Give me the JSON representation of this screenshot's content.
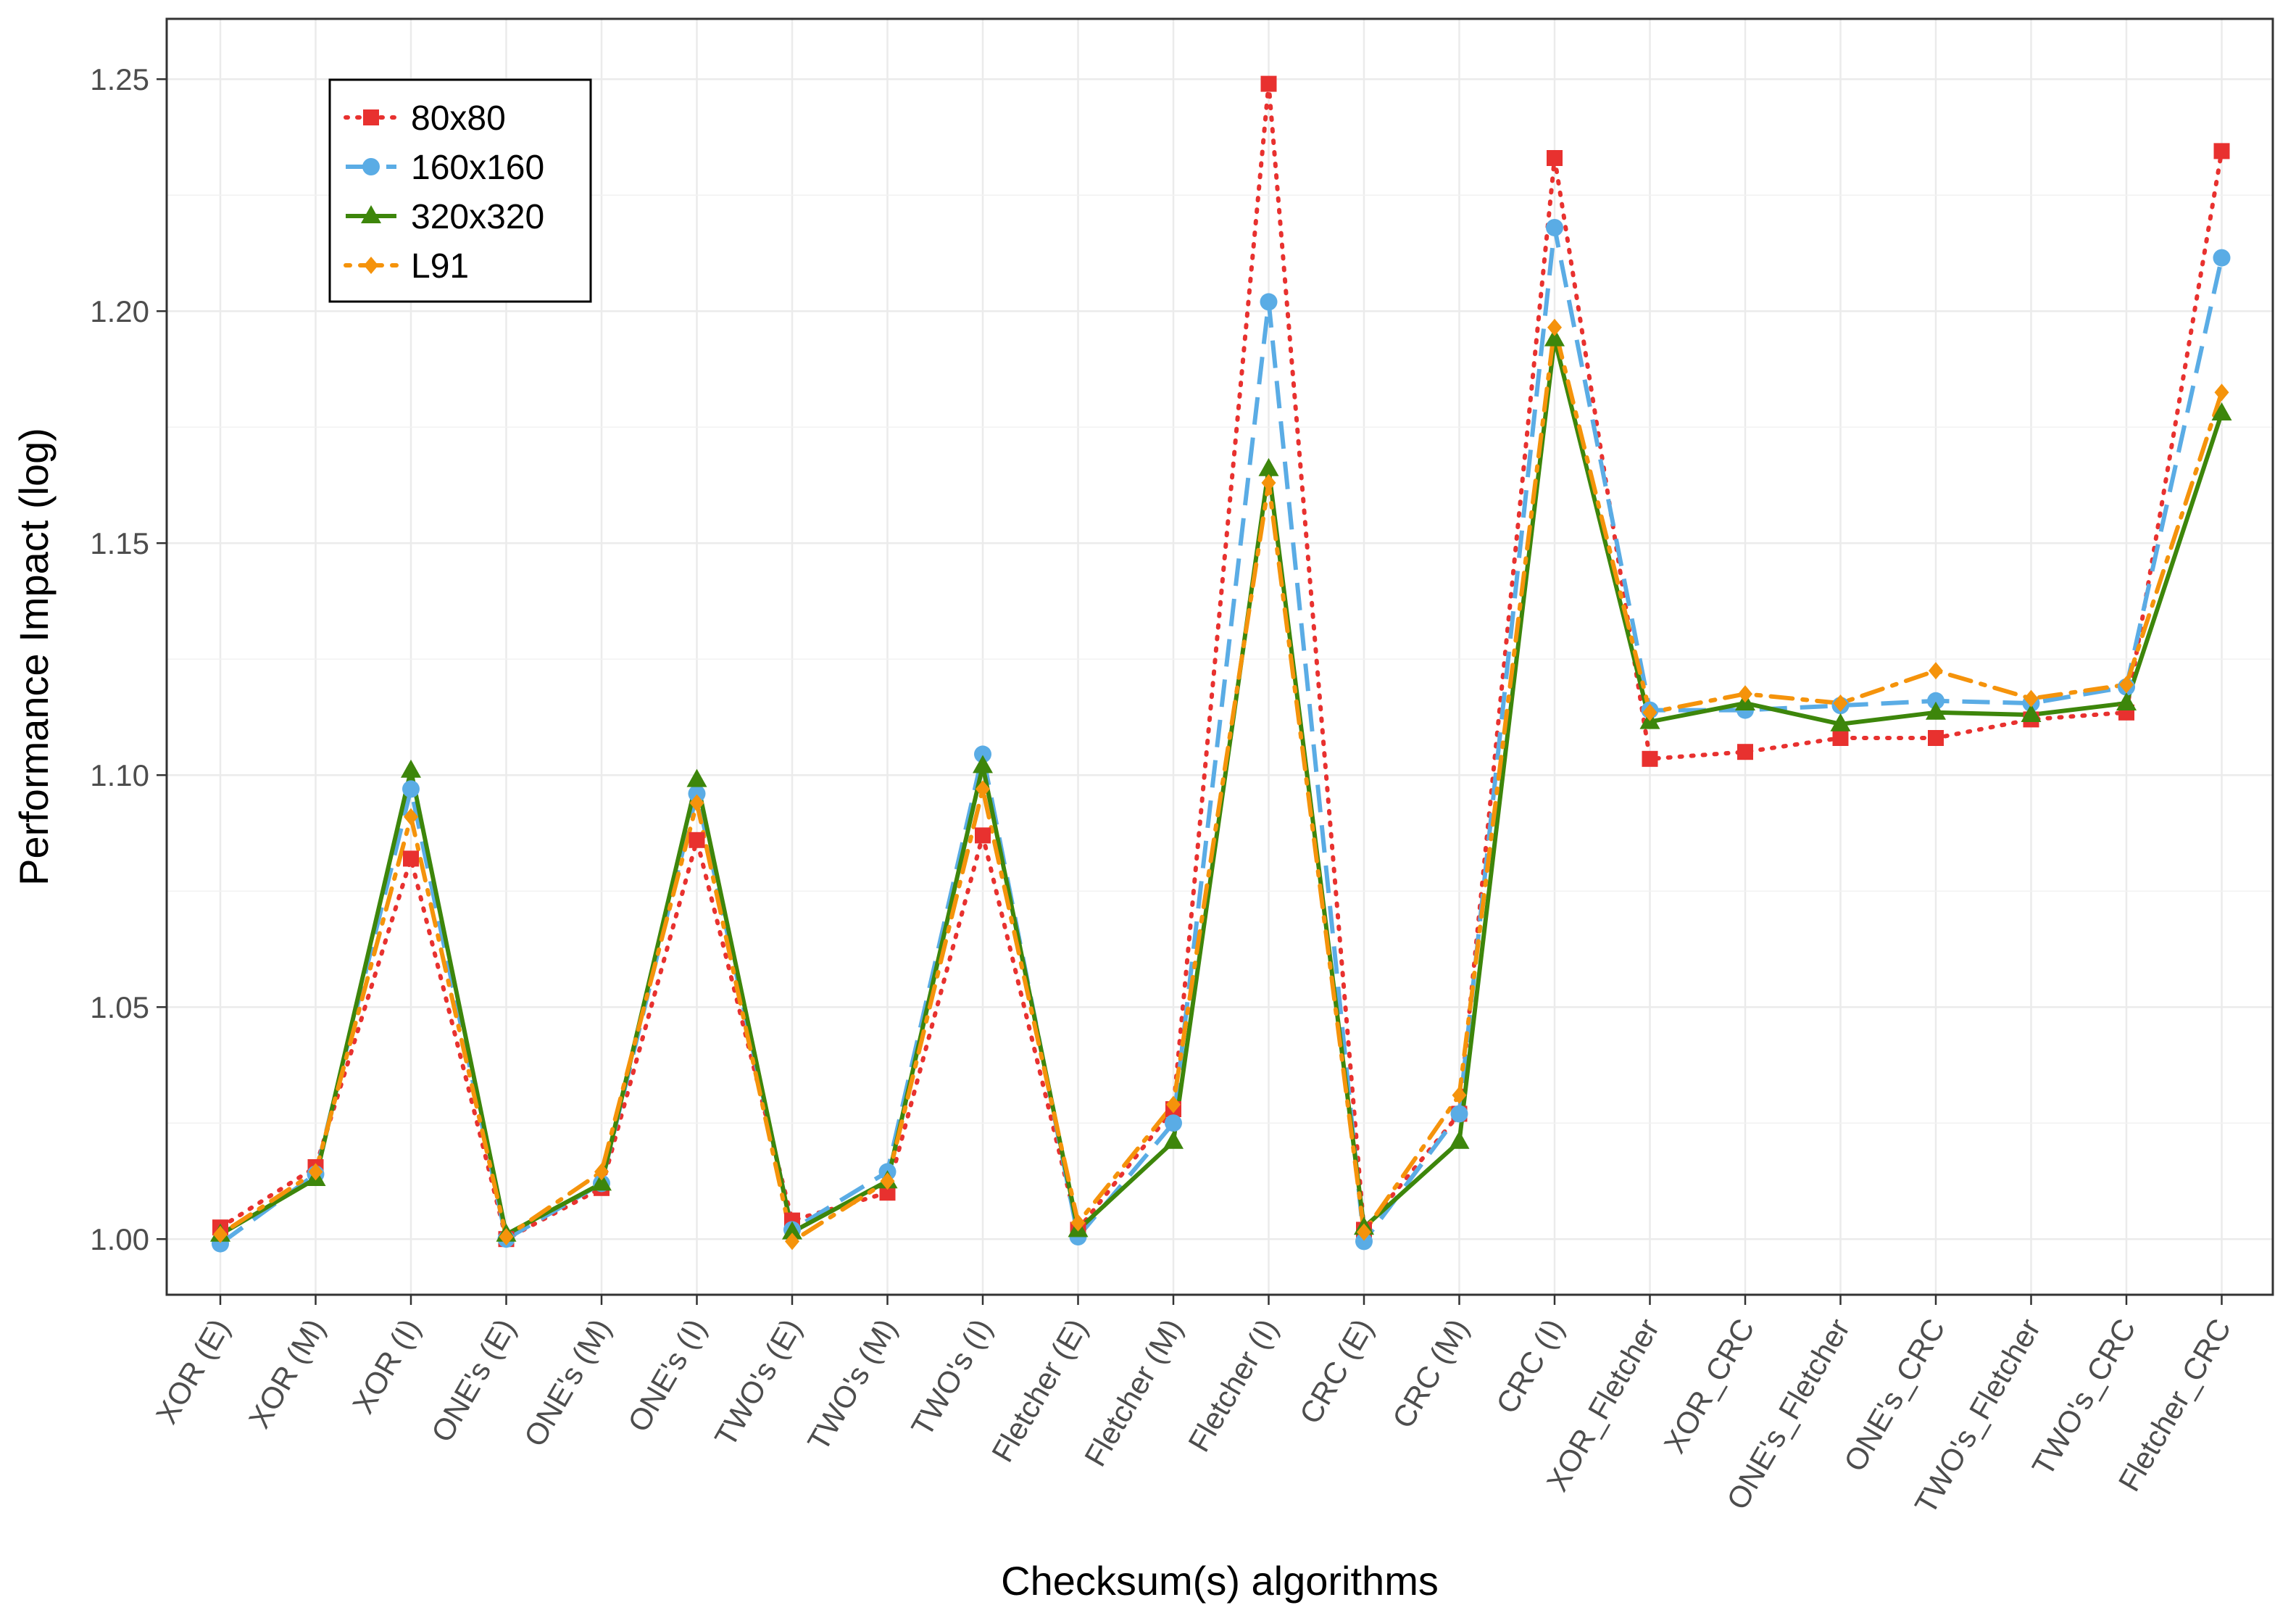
{
  "chart_data": {
    "type": "line",
    "title": "",
    "xlabel": "Checksum(s) algorithms",
    "ylabel": "Performance Impact (log)",
    "ylim": [
      0.988,
      1.263
    ],
    "yticks": [
      "1.00",
      "1.05",
      "1.10",
      "1.15",
      "1.20",
      "1.25"
    ],
    "grid": true,
    "legend_position": "top-left",
    "categories": [
      "XOR (E)",
      "XOR (M)",
      "XOR (I)",
      "ONE's (E)",
      "ONE's (M)",
      "ONE's (I)",
      "TWO's (E)",
      "TWO's (M)",
      "TWO's (I)",
      "Fletcher (E)",
      "Fletcher (M)",
      "Fletcher (I)",
      "CRC (E)",
      "CRC (M)",
      "CRC (I)",
      "XOR_Fletcher",
      "XOR_CRC",
      "ONE's_Fletcher",
      "ONE's_CRC",
      "TWO's_Fletcher",
      "TWO's_CRC",
      "Fletcher_CRC"
    ],
    "series": [
      {
        "name": "80x80",
        "color": "#e8312f",
        "marker": "square",
        "dash": "dotted",
        "values": [
          1.0025,
          1.0155,
          1.082,
          1.0,
          1.011,
          1.086,
          1.004,
          1.01,
          1.087,
          1.002,
          1.028,
          1.249,
          1.002,
          1.027,
          1.233,
          1.1035,
          1.105,
          1.108,
          1.108,
          1.112,
          1.1135,
          1.2345
        ]
      },
      {
        "name": "160x160",
        "color": "#5aace5",
        "marker": "circle",
        "dash": "longdash",
        "values": [
          0.999,
          1.014,
          1.097,
          1.0,
          1.012,
          1.096,
          1.002,
          1.0145,
          1.1045,
          1.0005,
          1.025,
          1.202,
          0.9995,
          1.027,
          1.218,
          1.114,
          1.114,
          1.115,
          1.116,
          1.1155,
          1.119,
          1.2115
        ]
      },
      {
        "name": "320x320",
        "color": "#3d860b",
        "marker": "triangle",
        "dash": "solid",
        "values": [
          1.001,
          1.013,
          1.101,
          1.001,
          1.012,
          1.099,
          1.0015,
          1.0125,
          1.102,
          1.002,
          1.021,
          1.166,
          1.0025,
          1.021,
          1.194,
          1.1115,
          1.1155,
          1.111,
          1.1135,
          1.113,
          1.1155,
          1.178
        ]
      },
      {
        "name": "L91",
        "color": "#f5930b",
        "marker": "diamond",
        "dash": "dotdash",
        "values": [
          1.001,
          1.0145,
          1.091,
          1.0005,
          1.0145,
          1.094,
          0.9995,
          1.0125,
          1.097,
          1.0035,
          1.029,
          1.163,
          1.0015,
          1.031,
          1.1965,
          1.1135,
          1.1175,
          1.1155,
          1.1225,
          1.1165,
          1.1195,
          1.1825
        ]
      }
    ]
  }
}
